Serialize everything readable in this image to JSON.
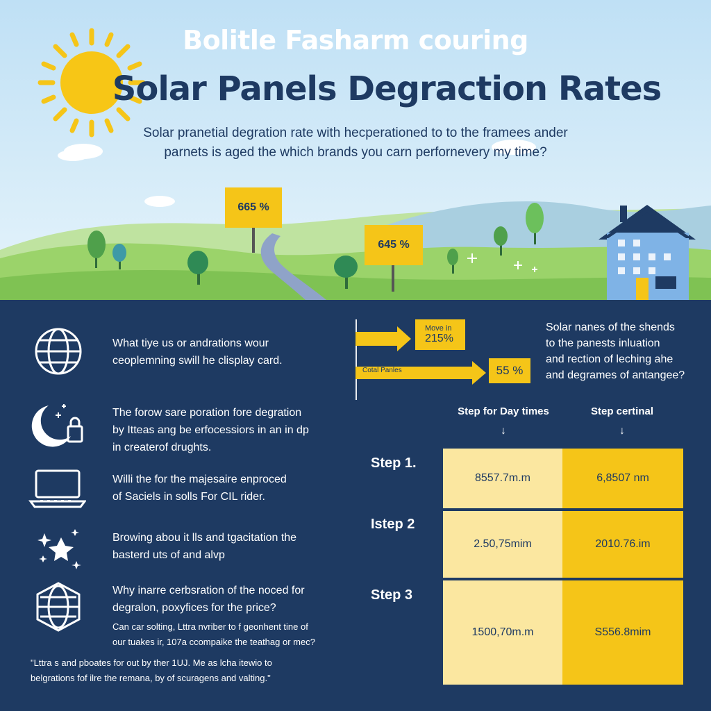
{
  "header": {
    "kicker": "Bolitle Fasharm couring",
    "title": "Solar Panels Degraction Rates",
    "subtitle_line1": "Solar pranetial degration rate with hecperationed to to the framees ander",
    "subtitle_line2": "parnets is aged the which brands you carn perfornevery my time?"
  },
  "signs": [
    {
      "label": "665 %"
    },
    {
      "label": "645 %"
    }
  ],
  "list_items": [
    {
      "icon": "globe-icon",
      "line1": "What tiye us or andrations wour",
      "line2": "ceoplemning swill he clisplay card."
    },
    {
      "icon": "moon-icon",
      "line1": "The forow sare poration fore degration",
      "line2": "by Itteas ang be erfocessiors in an in dp",
      "line3": "in createrof drughts."
    },
    {
      "icon": "laptop-icon",
      "line1": "Willi the for the majesaire enproced",
      "line2": "of Saciels in solls For CIL rider."
    },
    {
      "icon": "sparkle-icon",
      "line1": "Browing abou it lls and tgacitation the",
      "line2": "basterd uts of and alvp"
    },
    {
      "icon": "globe-icon",
      "line1": "Why inarre cerbsration of the noced for",
      "line2": "degralon, poxyfices for the price?"
    }
  ],
  "notes": {
    "note1_line1": "Can car solting, Lttra nvriber to f geonhent tine of",
    "note1_line2": "our tuakes ir, 107a ccompaike the teathag or mec?",
    "note2_line1": "\"Lttra s and pboates for out by ther 1UJ. Me as lcha itewio to",
    "note2_line2": "belgrations fof ilre the remana, by of scuragens and valting.\""
  },
  "arrows": {
    "arrow1_label_line1": "Move in",
    "arrow1_label_line2": "215%",
    "arrow2_tag": "Cotal Panles",
    "arrow2_value": "55 %"
  },
  "right_text": {
    "line1": "Solar nanes of the shends",
    "line2": "to the panests inluation",
    "line3": "and rection of leching ahe",
    "line4": "and degrames of antangee?"
  },
  "table": {
    "col1_header": "Step for Day times",
    "col2_header": "Step certinal",
    "arrow_glyph": "↓",
    "rows": [
      {
        "label": "Step 1.",
        "col1": "8557.7m.m",
        "col2": "6,8507 nm"
      },
      {
        "label": "Istep 2",
        "col1": "2.50,75mim",
        "col2": "2010.76.im"
      },
      {
        "label": "Step 3",
        "col1": "1500,70m.m",
        "col2": "S556.8mim"
      }
    ]
  },
  "colors": {
    "navy": "#1e3a62",
    "yellow": "#f5c518",
    "pale_yellow": "#fbe7a0",
    "sky": "#cfe8f7",
    "grass": "#9bd36a"
  }
}
